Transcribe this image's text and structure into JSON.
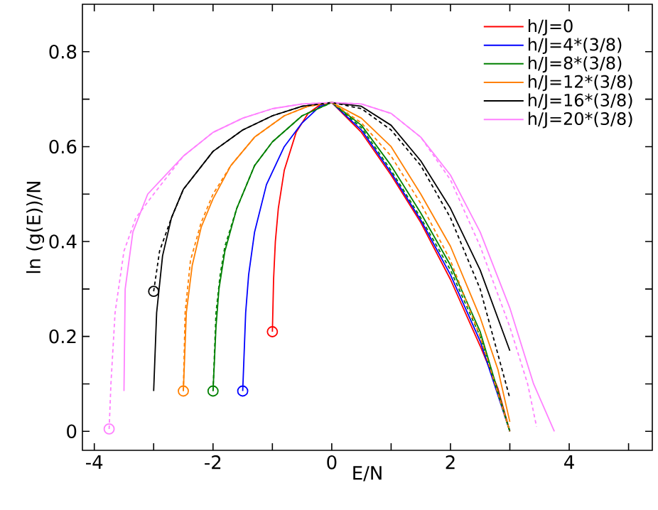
{
  "chart_data": {
    "type": "line",
    "xlabel": "E/N",
    "ylabel": "ln (g(E))/N",
    "xlim": [
      -4.2,
      5.4
    ],
    "ylim": [
      -0.04,
      0.9
    ],
    "xticks": [
      -4,
      {
        "value": -3,
        "label": null
      },
      -2,
      {
        "value": -1,
        "label": null
      },
      0,
      {
        "value": 1,
        "label": null
      },
      2,
      {
        "value": 3,
        "label": null
      },
      4,
      {
        "value": 5,
        "label": null
      }
    ],
    "yticks": [
      0,
      {
        "value": 0.1,
        "label": null
      },
      0.2,
      {
        "value": 0.3,
        "label": null
      },
      0.4,
      {
        "value": 0.5,
        "label": null
      },
      0.6,
      {
        "value": 0.7,
        "label": null
      },
      0.8
    ],
    "legend": "top right",
    "grid": false,
    "marker": "none",
    "line_style": "solid",
    "series": [
      {
        "name": "h/J=0",
        "color": "#ff0000",
        "x": [
          -1,
          -0.98,
          -0.95,
          -0.9,
          -0.8,
          -0.6,
          -0.4,
          -0.2,
          0,
          0.5,
          1,
          1.5,
          2,
          2.5,
          2.8,
          3
        ],
        "values": [
          0.21,
          0.32,
          0.4,
          0.47,
          0.55,
          0.63,
          0.67,
          0.688,
          0.693,
          0.63,
          0.54,
          0.44,
          0.32,
          0.18,
          0.09,
          0
        ]
      },
      {
        "name": "h/J=4*(3/8)",
        "color": "#0000ff",
        "x": [
          -1.5,
          -1.45,
          -1.4,
          -1.3,
          -1.1,
          -0.8,
          -0.5,
          -0.2,
          0,
          0.5,
          1,
          1.5,
          2,
          2.5,
          3
        ],
        "values": [
          0.085,
          0.25,
          0.33,
          0.42,
          0.52,
          0.6,
          0.65,
          0.685,
          0.693,
          0.635,
          0.545,
          0.445,
          0.33,
          0.19,
          0
        ]
      },
      {
        "name": "h/J=8*(3/8)",
        "color": "#008000",
        "x": [
          -2,
          -1.95,
          -1.9,
          -1.8,
          -1.6,
          -1.3,
          -1,
          -0.5,
          0,
          0.5,
          1,
          1.5,
          2,
          2.5,
          3
        ],
        "values": [
          0.085,
          0.22,
          0.3,
          0.38,
          0.47,
          0.56,
          0.61,
          0.665,
          0.693,
          0.645,
          0.56,
          0.46,
          0.35,
          0.21,
          0
        ]
      },
      {
        "name": "h/J=12*(3/8)",
        "color": "#ff8000",
        "x": [
          -2.5,
          -2.45,
          -2.35,
          -2.2,
          -2,
          -1.7,
          -1.3,
          -0.8,
          -0.4,
          0,
          0.5,
          1,
          1.5,
          2,
          2.5,
          2.8,
          3
        ],
        "values": [
          0.085,
          0.25,
          0.35,
          0.43,
          0.49,
          0.56,
          0.62,
          0.665,
          0.685,
          0.693,
          0.66,
          0.6,
          0.5,
          0.39,
          0.24,
          0.13,
          0.02
        ]
      },
      {
        "name": "h/J=16*(3/8)",
        "color": "#000000",
        "x": [
          -3,
          -2.95,
          -2.85,
          -2.7,
          -2.5,
          -2,
          -1.5,
          -1,
          -0.5,
          0,
          0.5,
          1,
          1.5,
          2,
          2.5,
          3
        ],
        "values": [
          0.085,
          0.25,
          0.37,
          0.45,
          0.51,
          0.59,
          0.635,
          0.665,
          0.685,
          0.693,
          0.685,
          0.645,
          0.57,
          0.47,
          0.34,
          0.17
        ]
      },
      {
        "name": "h/J=20*(3/8)",
        "color": "#ff80ff",
        "x": [
          -3.5,
          -3.48,
          -3.35,
          -3.1,
          -2.5,
          -2,
          -1.5,
          -1,
          -0.5,
          0,
          0.5,
          1,
          1.5,
          2,
          2.5,
          3,
          3.4,
          3.75
        ],
        "values": [
          0.085,
          0.3,
          0.42,
          0.5,
          0.58,
          0.63,
          0.66,
          0.68,
          0.69,
          0.693,
          0.69,
          0.67,
          0.62,
          0.54,
          0.42,
          0.26,
          0.1,
          0
        ]
      },
      {
        "color": "#008000",
        "line_style": "dashed",
        "x": [
          -2,
          -1.95,
          -1.88,
          -1.8,
          -1.6,
          -1.3,
          -1,
          -0.5,
          0,
          0.5,
          1,
          1.5,
          2,
          2.5,
          3
        ],
        "values": [
          0.085,
          0.25,
          0.33,
          0.39,
          0.47,
          0.56,
          0.61,
          0.665,
          0.693,
          0.64,
          0.55,
          0.45,
          0.34,
          0.2,
          0
        ]
      },
      {
        "color": "#ff8000",
        "line_style": "dashed",
        "x": [
          -2.5,
          -2.47,
          -2.38,
          -2.2,
          -2,
          -1.7,
          -1.3,
          -0.8,
          -0.4,
          0,
          0.5,
          1,
          1.5,
          2,
          2.5,
          3
        ],
        "values": [
          0.085,
          0.25,
          0.36,
          0.44,
          0.5,
          0.56,
          0.62,
          0.665,
          0.685,
          0.693,
          0.65,
          0.58,
          0.48,
          0.36,
          0.2,
          0
        ]
      },
      {
        "color": "#000000",
        "line_style": "dashed",
        "x": [
          -3,
          -2.9,
          -2.7,
          -2.5,
          -2,
          -1.5,
          -1,
          -0.5,
          0,
          0.5,
          1,
          1.5,
          2,
          2.5,
          3
        ],
        "values": [
          0.295,
          0.38,
          0.45,
          0.51,
          0.59,
          0.635,
          0.665,
          0.685,
          0.693,
          0.68,
          0.635,
          0.56,
          0.45,
          0.3,
          0.07
        ]
      },
      {
        "color": "#ff80ff",
        "line_style": "dashed",
        "x": [
          -3.75,
          -3.72,
          -3.65,
          -3.5,
          -3.3,
          -3,
          -2.5,
          -2,
          -1.5,
          -1,
          -0.5,
          0,
          0.5,
          1,
          1.5,
          2,
          2.5,
          3,
          3.3,
          3.45
        ],
        "values": [
          0.005,
          0.1,
          0.25,
          0.38,
          0.45,
          0.5,
          0.58,
          0.63,
          0.66,
          0.68,
          0.69,
          0.693,
          0.69,
          0.67,
          0.62,
          0.53,
          0.39,
          0.22,
          0.1,
          0.01
        ]
      },
      {
        "type": "scatter",
        "marker": "circle",
        "colors": [
          "#ff0000",
          "#0000ff",
          "#008000",
          "#ff8000",
          "#000000",
          "#ff80ff"
        ],
        "x": [
          -1,
          -1.5,
          -2,
          -2.5,
          -3,
          -3.75
        ],
        "values": [
          0.21,
          0.085,
          0.085,
          0.085,
          0.295,
          0.005
        ]
      }
    ]
  }
}
